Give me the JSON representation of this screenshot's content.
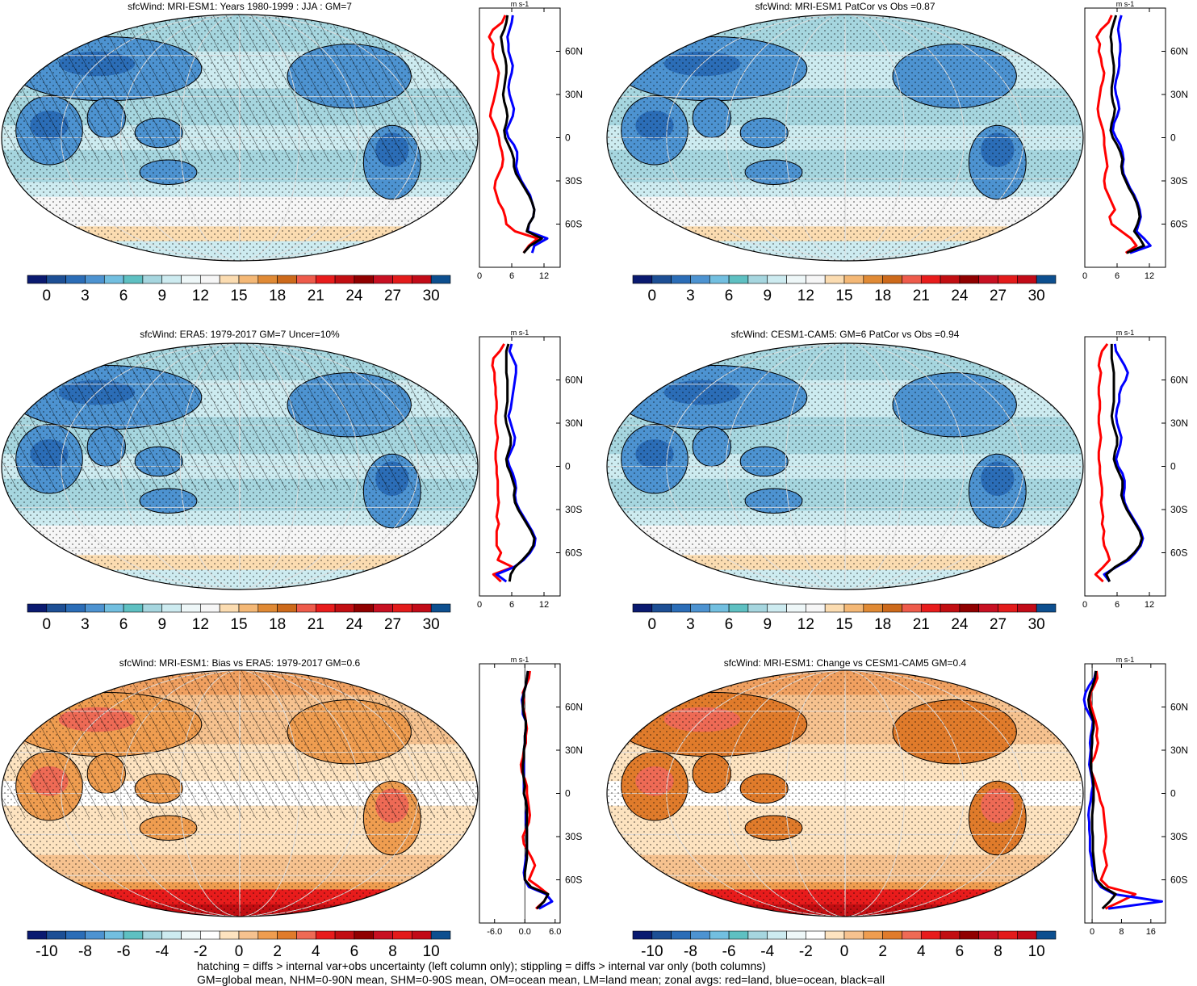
{
  "palettes": {
    "abs": [
      "#0a1a70",
      "#1d4f95",
      "#2b6db7",
      "#4d93d1",
      "#72bfe0",
      "#5ec0c2",
      "#a6d6df",
      "#cdebf0",
      "#eef7f8",
      "#f6f6f6",
      "#fbdcb1",
      "#f4b876",
      "#e08a35",
      "#cd6a1b",
      "#ee5b4b",
      "#e81c1c",
      "#c20e12",
      "#900000",
      "#c81022",
      "#e31b1b",
      "#c20b18",
      "#0d4f8f"
    ],
    "diff": [
      "#0a1a70",
      "#1d4f95",
      "#2b6db7",
      "#4d93d1",
      "#72bfe0",
      "#5ec0c2",
      "#a6d6df",
      "#cdebf0",
      "#eef7f8",
      "#ffffff",
      "#fde3c0",
      "#f6c28f",
      "#ef9d50",
      "#e07b2b",
      "#ee6a55",
      "#e81c1c",
      "#c20e12",
      "#900000",
      "#c81022",
      "#e31b1b",
      "#c20b18",
      "#0d4f8f"
    ]
  },
  "panels": [
    {
      "title": "sfcWind: MRI-ESM1: Years 1980-1999 : JJA : GM=7",
      "scheme": "abs",
      "hatch": true,
      "stipple": true,
      "colorbar_ticks": [
        "0",
        "3",
        "6",
        "9",
        "12",
        "15",
        "18",
        "21",
        "24",
        "27",
        "30"
      ],
      "zonal": {
        "unit": "m s-1",
        "xticks": [
          "0",
          "6",
          "12"
        ],
        "xmin": 0,
        "xmax": 15,
        "zero_line": false,
        "lat": [
          85,
          80,
          75,
          70,
          65,
          60,
          55,
          50,
          45,
          40,
          35,
          30,
          25,
          20,
          15,
          10,
          5,
          0,
          -5,
          -10,
          -15,
          -20,
          -25,
          -30,
          -35,
          -40,
          -45,
          -50,
          -55,
          -60,
          -65,
          -70,
          -75,
          -80
        ],
        "land": [
          4.8,
          4.2,
          2.5,
          1.8,
          2.6,
          2.4,
          2.6,
          3.2,
          3.6,
          3.4,
          3.2,
          2.9,
          2.6,
          2.2,
          2.0,
          2.6,
          3.2,
          3.6,
          3.8,
          4.2,
          4.4,
          4.2,
          3.6,
          3.0,
          2.8,
          3.2,
          3.6,
          4.4,
          4.8,
          5.0,
          6.6,
          10.8,
          9.2,
          8.2
        ],
        "ocean": [
          6.2,
          6.0,
          5.6,
          5.2,
          5.4,
          5.4,
          5.8,
          6.2,
          6.0,
          5.6,
          5.4,
          5.6,
          6.0,
          6.4,
          6.2,
          5.6,
          5.0,
          5.4,
          6.4,
          7.0,
          7.0,
          6.8,
          7.2,
          7.8,
          8.6,
          9.4,
          9.8,
          10.2,
          10.0,
          9.2,
          9.0,
          12.6,
          10.2,
          9.8
        ],
        "all": [
          5.2,
          5.0,
          4.6,
          4.0,
          4.2,
          4.4,
          4.8,
          5.0,
          5.0,
          4.8,
          4.6,
          4.4,
          4.6,
          5.0,
          5.2,
          5.0,
          4.6,
          4.8,
          5.4,
          6.0,
          6.4,
          6.4,
          6.8,
          7.6,
          8.4,
          9.2,
          9.8,
          10.2,
          10.0,
          9.2,
          8.8,
          11.6,
          9.4,
          8.2
        ]
      }
    },
    {
      "title": "sfcWind: MRI-ESM1 PatCor vs Obs =0.87",
      "scheme": "abs",
      "hatch": false,
      "stipple": true,
      "colorbar_ticks": [
        "0",
        "3",
        "6",
        "9",
        "12",
        "15",
        "18",
        "21",
        "24",
        "27",
        "30"
      ],
      "zonal": {
        "unit": "m s-1",
        "xticks": [
          "0",
          "6",
          "12"
        ],
        "xmin": 0,
        "xmax": 15,
        "zero_line": false,
        "lat": [
          85,
          80,
          75,
          70,
          65,
          60,
          55,
          50,
          45,
          40,
          35,
          30,
          25,
          20,
          15,
          10,
          5,
          0,
          -5,
          -10,
          -15,
          -20,
          -25,
          -30,
          -35,
          -40,
          -45,
          -50,
          -55,
          -60,
          -65,
          -70,
          -75,
          -80
        ],
        "land": [
          5.0,
          4.4,
          3.0,
          2.2,
          2.8,
          2.6,
          3.0,
          3.2,
          3.6,
          3.4,
          3.0,
          2.8,
          2.6,
          2.4,
          2.6,
          3.0,
          3.4,
          3.6,
          3.6,
          3.8,
          4.0,
          4.2,
          3.8,
          3.6,
          3.8,
          4.4,
          5.0,
          5.6,
          4.6,
          5.0,
          6.8,
          8.6,
          9.6,
          7.6
        ],
        "ocean": [
          6.8,
          6.4,
          6.2,
          6.4,
          6.6,
          6.6,
          6.4,
          6.4,
          6.2,
          5.8,
          5.6,
          5.8,
          6.2,
          6.4,
          6.0,
          5.4,
          5.2,
          5.8,
          6.6,
          7.0,
          7.2,
          7.0,
          7.2,
          7.8,
          8.4,
          9.2,
          9.8,
          10.2,
          10.4,
          10.0,
          9.6,
          11.0,
          12.2,
          8.4
        ],
        "all": [
          5.8,
          5.4,
          5.0,
          4.8,
          5.0,
          5.0,
          5.2,
          5.4,
          5.4,
          5.2,
          5.0,
          5.0,
          5.2,
          5.6,
          5.4,
          5.0,
          4.8,
          5.2,
          6.0,
          6.6,
          7.0,
          6.8,
          7.0,
          7.6,
          8.2,
          9.0,
          9.6,
          10.0,
          10.2,
          9.8,
          9.2,
          10.2,
          11.0,
          7.8
        ]
      }
    },
    {
      "title": "sfcWind: ERA5: 1979-2017 GM=7 Uncer=10%",
      "scheme": "abs",
      "hatch": true,
      "stipple": true,
      "colorbar_ticks": [
        "0",
        "3",
        "6",
        "9",
        "12",
        "15",
        "18",
        "21",
        "24",
        "27",
        "30"
      ],
      "zonal": {
        "unit": "m s-1",
        "xticks": [
          "0",
          "6",
          "12"
        ],
        "xmin": 0,
        "xmax": 15,
        "zero_line": false,
        "lat": [
          85,
          80,
          75,
          70,
          65,
          60,
          55,
          50,
          45,
          40,
          35,
          30,
          25,
          20,
          15,
          10,
          5,
          0,
          -5,
          -10,
          -15,
          -20,
          -25,
          -30,
          -35,
          -40,
          -45,
          -50,
          -55,
          -60,
          -65,
          -70,
          -75,
          -80
        ],
        "land": [
          4.6,
          3.8,
          2.6,
          2.4,
          2.8,
          2.8,
          3.0,
          3.0,
          3.2,
          3.2,
          3.0,
          3.0,
          3.2,
          3.4,
          3.2,
          3.0,
          3.0,
          3.2,
          3.2,
          3.4,
          3.4,
          3.4,
          3.6,
          3.4,
          3.2,
          3.6,
          3.2,
          3.2,
          3.2,
          4.0,
          3.4,
          6.2,
          2.6,
          4.0
        ],
        "ocean": [
          6.0,
          5.6,
          6.2,
          6.8,
          6.8,
          6.6,
          6.4,
          6.2,
          6.0,
          5.8,
          5.4,
          5.8,
          6.2,
          6.6,
          6.4,
          5.8,
          5.2,
          5.6,
          6.2,
          6.6,
          6.8,
          6.6,
          6.8,
          7.4,
          8.2,
          9.0,
          9.8,
          10.4,
          10.2,
          9.4,
          8.2,
          6.4,
          3.2,
          5.0
        ],
        "all": [
          5.4,
          5.0,
          5.0,
          5.0,
          5.0,
          5.2,
          5.2,
          5.2,
          5.2,
          5.0,
          4.8,
          5.0,
          5.4,
          5.8,
          5.8,
          5.4,
          5.0,
          5.2,
          5.8,
          6.2,
          6.6,
          6.4,
          6.6,
          7.2,
          8.0,
          8.8,
          9.6,
          10.2,
          10.0,
          9.2,
          8.0,
          6.6,
          5.8,
          5.6
        ]
      }
    },
    {
      "title": "sfcWind: CESM1-CAM5: GM=6 PatCor vs Obs =0.94",
      "scheme": "abs",
      "hatch": false,
      "stipple": true,
      "colorbar_ticks": [
        "0",
        "3",
        "6",
        "9",
        "12",
        "15",
        "18",
        "21",
        "24",
        "27",
        "30"
      ],
      "zonal": {
        "unit": "m s-1",
        "xticks": [
          "0",
          "6",
          "12"
        ],
        "xmin": 0,
        "xmax": 15,
        "zero_line": false,
        "lat": [
          85,
          80,
          75,
          70,
          65,
          60,
          55,
          50,
          45,
          40,
          35,
          30,
          25,
          20,
          15,
          10,
          5,
          0,
          -5,
          -10,
          -15,
          -20,
          -25,
          -30,
          -35,
          -40,
          -45,
          -50,
          -55,
          -60,
          -65,
          -70,
          -75,
          -80
        ],
        "land": [
          4.2,
          3.2,
          2.8,
          2.6,
          3.0,
          2.8,
          2.6,
          2.6,
          2.8,
          2.8,
          2.6,
          2.6,
          2.8,
          3.0,
          2.8,
          2.6,
          2.6,
          2.8,
          2.8,
          3.0,
          3.2,
          3.2,
          3.0,
          3.2,
          3.4,
          3.2,
          3.6,
          3.4,
          3.6,
          4.2,
          4.6,
          3.4,
          2.0,
          3.4
        ],
        "ocean": [
          5.6,
          5.8,
          6.6,
          7.4,
          8.0,
          7.6,
          6.8,
          6.4,
          6.4,
          6.0,
          5.8,
          6.0,
          6.4,
          6.8,
          6.6,
          6.2,
          5.8,
          6.2,
          7.0,
          7.4,
          7.4,
          7.2,
          7.4,
          8.0,
          8.8,
          9.6,
          10.4,
          10.8,
          10.4,
          9.4,
          8.2,
          5.8,
          3.6,
          4.6
        ],
        "all": [
          5.0,
          5.0,
          5.0,
          5.2,
          5.4,
          5.4,
          5.4,
          5.4,
          5.4,
          5.2,
          5.0,
          5.2,
          5.6,
          6.0,
          6.0,
          5.6,
          5.4,
          5.8,
          6.4,
          7.0,
          7.0,
          6.8,
          7.2,
          7.8,
          8.6,
          9.4,
          10.2,
          10.6,
          10.2,
          9.2,
          7.8,
          5.6,
          4.0,
          4.6
        ]
      }
    },
    {
      "title": "sfcWind: MRI-ESM1: Bias vs ERA5: 1979-2017 GM=0.6",
      "scheme": "diff",
      "hatch": true,
      "stipple": true,
      "colorbar_ticks": [
        "-10",
        "-8",
        "-6",
        "-4",
        "-2",
        "0",
        "2",
        "4",
        "6",
        "8",
        "10"
      ],
      "zonal": {
        "unit": "m s-1",
        "xticks": [
          "-6.0",
          "0.0",
          "6.0"
        ],
        "xmin": -9,
        "xmax": 7,
        "zero_line": true,
        "lat": [
          85,
          80,
          75,
          70,
          65,
          60,
          55,
          50,
          45,
          40,
          35,
          30,
          25,
          20,
          15,
          10,
          5,
          0,
          -5,
          -10,
          -15,
          -20,
          -25,
          -30,
          -35,
          -40,
          -45,
          -50,
          -55,
          -60,
          -65,
          -70,
          -75,
          -80
        ],
        "land": [
          1.0,
          0.8,
          0.2,
          -0.4,
          -0.2,
          -0.4,
          0.0,
          0.2,
          0.4,
          0.2,
          0.2,
          -0.2,
          -0.4,
          -0.8,
          -0.6,
          0.0,
          0.4,
          0.4,
          0.6,
          0.8,
          1.0,
          0.8,
          0.2,
          -0.4,
          -0.2,
          0.6,
          1.4,
          2.0,
          1.4,
          0.8,
          2.8,
          4.6,
          3.8,
          2.2
        ],
        "ocean": [
          0.6,
          0.4,
          0.2,
          -0.2,
          -0.6,
          -0.4,
          -0.4,
          0.2,
          0.2,
          0.0,
          0.0,
          -0.2,
          -0.2,
          -0.2,
          -0.2,
          -0.2,
          -0.2,
          -0.2,
          0.2,
          0.4,
          0.2,
          0.2,
          0.4,
          0.4,
          0.4,
          0.4,
          0.2,
          0.0,
          -0.2,
          0.0,
          0.8,
          4.2,
          5.4,
          2.8
        ],
        "all": [
          0.6,
          0.4,
          0.2,
          -0.2,
          -0.4,
          -0.4,
          -0.2,
          0.2,
          0.2,
          0.0,
          0.0,
          -0.2,
          -0.2,
          -0.4,
          -0.4,
          -0.2,
          0.0,
          -0.2,
          0.2,
          0.4,
          0.4,
          0.4,
          0.4,
          0.4,
          0.4,
          0.4,
          0.4,
          0.2,
          0.0,
          0.0,
          1.2,
          4.6,
          3.8,
          2.4
        ]
      }
    },
    {
      "title": "sfcWind: MRI-ESM1: Change vs CESM1-CAM5 GM=0.4",
      "scheme": "diff",
      "hatch": false,
      "stipple": true,
      "colorbar_ticks": [
        "-10",
        "-8",
        "-6",
        "-4",
        "-2",
        "0",
        "2",
        "4",
        "6",
        "8",
        "10"
      ],
      "zonal": {
        "unit": "m s-1",
        "xticks": [
          "0",
          "8",
          "16"
        ],
        "xmin": -2,
        "xmax": 20,
        "zero_line": true,
        "lat": [
          85,
          80,
          75,
          70,
          65,
          60,
          55,
          50,
          45,
          40,
          35,
          30,
          25,
          20,
          15,
          10,
          5,
          0,
          -5,
          -10,
          -15,
          -20,
          -25,
          -30,
          -35,
          -40,
          -45,
          -50,
          -55,
          -60,
          -65,
          -70,
          -75,
          -80
        ],
        "land": [
          1.2,
          1.4,
          0.6,
          -0.4,
          -0.6,
          -0.2,
          0.4,
          1.0,
          1.4,
          1.2,
          1.6,
          1.2,
          0.6,
          -0.6,
          -0.2,
          0.6,
          1.2,
          1.8,
          2.2,
          3.0,
          3.2,
          3.4,
          3.6,
          3.8,
          3.6,
          3.2,
          3.6,
          4.0,
          3.2,
          2.4,
          4.4,
          11.8,
          7.8,
          3.6
        ],
        "ocean": [
          1.0,
          0.6,
          -0.8,
          -1.8,
          -2.2,
          -1.8,
          -0.8,
          0.2,
          0.0,
          -0.4,
          -0.6,
          -0.4,
          -0.6,
          -0.8,
          -0.4,
          0.0,
          0.2,
          -0.2,
          -0.4,
          -0.8,
          -1.0,
          -0.8,
          -0.8,
          -0.6,
          -0.6,
          -0.6,
          -0.2,
          0.0,
          0.6,
          1.0,
          2.4,
          6.0,
          19.0,
          4.4
        ],
        "all": [
          1.0,
          0.8,
          0.2,
          -0.6,
          -1.0,
          -0.8,
          -0.2,
          0.4,
          0.4,
          0.0,
          0.0,
          -0.2,
          -0.2,
          -0.4,
          -0.2,
          0.2,
          0.4,
          0.4,
          0.4,
          0.2,
          0.0,
          0.0,
          0.0,
          0.2,
          0.2,
          0.2,
          0.4,
          0.6,
          0.8,
          1.2,
          3.0,
          6.4,
          4.8,
          2.8
        ]
      }
    }
  ],
  "lat_labels": [
    "60N",
    "30N",
    "0",
    "30S",
    "60S"
  ],
  "footer": {
    "line1": "hatching = diffs > internal var+obs uncertainty (left column only); stippling = diffs > internal var only (both columns)",
    "line2": "GM=global mean, NHM=0-90N mean, SHM=0-90S mean, OM=ocean mean, LM=land mean; zonal avgs: red=land, blue=ocean, black=all"
  },
  "chart_data": [
    {
      "type": "line",
      "title": "sfcWind: MRI-ESM1: Years 1980-1999 : JJA : GM=7",
      "xlabel": "m s-1",
      "series_source": "panels.0.zonal"
    },
    {
      "type": "line",
      "title": "sfcWind: MRI-ESM1 PatCor vs Obs =0.87",
      "xlabel": "m s-1",
      "series_source": "panels.1.zonal"
    },
    {
      "type": "line",
      "title": "sfcWind: ERA5: 1979-2017 GM=7 Uncer=10%",
      "xlabel": "m s-1",
      "series_source": "panels.2.zonal"
    },
    {
      "type": "line",
      "title": "sfcWind: CESM1-CAM5: GM=6 PatCor vs Obs =0.94",
      "xlabel": "m s-1",
      "series_source": "panels.3.zonal"
    },
    {
      "type": "line",
      "title": "sfcWind: MRI-ESM1: Bias vs ERA5: 1979-2017 GM=0.6",
      "xlabel": "m s-1",
      "series_source": "panels.4.zonal"
    },
    {
      "type": "line",
      "title": "sfcWind: MRI-ESM1: Change vs CESM1-CAM5 GM=0.4",
      "xlabel": "m s-1",
      "series_source": "panels.5.zonal"
    }
  ]
}
